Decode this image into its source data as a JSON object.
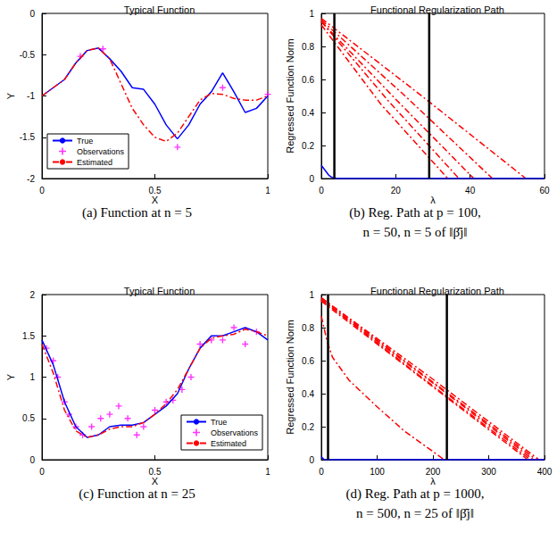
{
  "chart_data": [
    {
      "type": "line",
      "title": "Typical Function",
      "x_label": "X",
      "y_label": "Y",
      "caption": [
        "(a) Function at n = 5"
      ],
      "xlim": [
        0,
        1
      ],
      "xticks": [
        0,
        0.5,
        1
      ],
      "ylim": [
        -2,
        0
      ],
      "yticks": [
        -2,
        -1.5,
        -1,
        -0.5,
        0
      ],
      "grid": false,
      "legend": "lower left",
      "series": [
        {
          "name": "True",
          "type": "line",
          "color": "#0000ff",
          "line_style": "solid",
          "x": [
            0,
            0.05,
            0.1,
            0.15,
            0.2,
            0.25,
            0.3,
            0.35,
            0.4,
            0.45,
            0.5,
            0.55,
            0.6,
            0.65,
            0.7,
            0.75,
            0.8,
            0.85,
            0.9,
            0.95,
            1
          ],
          "values": [
            -1.0,
            -0.9,
            -0.8,
            -0.6,
            -0.45,
            -0.42,
            -0.55,
            -0.7,
            -0.9,
            -0.92,
            -1.1,
            -1.35,
            -1.52,
            -1.35,
            -1.1,
            -0.95,
            -0.72,
            -0.95,
            -1.2,
            -1.15,
            -1.0
          ]
        },
        {
          "name": "Observations",
          "type": "scatter",
          "color": "#ff00ff",
          "marker": "plus",
          "x": [
            0.17,
            0.27,
            0.6,
            0.8,
            1.0
          ],
          "values": [
            -0.52,
            -0.43,
            -1.62,
            -0.9,
            -0.98
          ]
        },
        {
          "name": "Estimated",
          "type": "line",
          "color": "#ff0000",
          "line_style": "dashdot",
          "x": [
            0,
            0.05,
            0.1,
            0.15,
            0.2,
            0.25,
            0.3,
            0.35,
            0.4,
            0.45,
            0.5,
            0.55,
            0.6,
            0.65,
            0.7,
            0.75,
            0.8,
            0.85,
            0.9,
            0.95,
            1
          ],
          "values": [
            -1.0,
            -0.9,
            -0.8,
            -0.6,
            -0.45,
            -0.42,
            -0.55,
            -0.85,
            -1.15,
            -1.35,
            -1.5,
            -1.55,
            -1.45,
            -1.25,
            -1.05,
            -0.97,
            -0.98,
            -1.03,
            -1.05,
            -1.05,
            -1.0
          ]
        }
      ]
    },
    {
      "type": "line",
      "title": "Functional Regularization Path",
      "x_label": "λ",
      "y_label": "Regressed Function Norm",
      "caption": [
        "(b) Reg. Path at p = 100,",
        "n = 50, n = 5 of ‖β̂j‖"
      ],
      "xlim": [
        0,
        60
      ],
      "xticks": [
        0,
        20,
        40,
        60
      ],
      "ylim": [
        0,
        1
      ],
      "yticks": [
        0,
        0.2,
        0.4,
        0.6,
        0.8,
        1
      ],
      "grid": false,
      "series": [
        {
          "type": "line",
          "color": "#ff0000",
          "line_style": "dashdot",
          "x": [
            0,
            27,
            55
          ],
          "values": [
            0.97,
            0.5,
            0
          ]
        },
        {
          "type": "line",
          "color": "#ff0000",
          "line_style": "dashdot",
          "x": [
            0,
            23,
            46
          ],
          "values": [
            0.96,
            0.49,
            0
          ]
        },
        {
          "type": "line",
          "color": "#ff0000",
          "line_style": "dashdot",
          "x": [
            0,
            20,
            41
          ],
          "values": [
            0.95,
            0.48,
            0
          ]
        },
        {
          "type": "line",
          "color": "#ff0000",
          "line_style": "dashdot",
          "x": [
            0,
            18,
            37
          ],
          "values": [
            0.95,
            0.47,
            0
          ]
        },
        {
          "type": "line",
          "color": "#ff0000",
          "line_style": "dashdot",
          "x": [
            0,
            16,
            34
          ],
          "values": [
            0.93,
            0.45,
            0
          ]
        },
        {
          "type": "line",
          "color": "#0000ff",
          "line_style": "solid",
          "x": [
            0,
            1,
            2,
            3,
            4,
            60
          ],
          "values": [
            0.08,
            0.05,
            0.02,
            0.005,
            0,
            0
          ]
        },
        {
          "type": "line",
          "color": "#000000",
          "line_style": "solid",
          "x": [
            3.5,
            3.5
          ],
          "values": [
            0,
            1
          ]
        },
        {
          "type": "line",
          "color": "#000000",
          "line_style": "solid",
          "x": [
            29,
            29
          ],
          "values": [
            0,
            1
          ]
        }
      ]
    },
    {
      "type": "line",
      "title": "Typical Function",
      "x_label": "X",
      "y_label": "Y",
      "caption": [
        "(c) Function at n = 25"
      ],
      "xlim": [
        0,
        1
      ],
      "xticks": [
        0,
        0.5,
        1
      ],
      "ylim": [
        0,
        2
      ],
      "yticks": [
        0,
        0.5,
        1,
        1.5,
        2
      ],
      "grid": false,
      "legend": "lower right",
      "series": [
        {
          "name": "True",
          "type": "line",
          "color": "#0000ff",
          "line_style": "solid",
          "x": [
            0,
            0.05,
            0.1,
            0.15,
            0.2,
            0.25,
            0.3,
            0.35,
            0.4,
            0.45,
            0.5,
            0.55,
            0.6,
            0.65,
            0.7,
            0.75,
            0.8,
            0.85,
            0.9,
            0.95,
            1
          ],
          "values": [
            1.45,
            1.15,
            0.7,
            0.4,
            0.27,
            0.3,
            0.4,
            0.42,
            0.42,
            0.45,
            0.55,
            0.65,
            0.8,
            1.1,
            1.35,
            1.5,
            1.5,
            1.55,
            1.6,
            1.55,
            1.45
          ]
        },
        {
          "name": "Observations",
          "type": "scatter",
          "color": "#ff00ff",
          "marker": "plus",
          "x": [
            0.02,
            0.05,
            0.07,
            0.1,
            0.12,
            0.15,
            0.18,
            0.22,
            0.26,
            0.3,
            0.34,
            0.38,
            0.42,
            0.45,
            0.5,
            0.55,
            0.58,
            0.62,
            0.66,
            0.7,
            0.75,
            0.8,
            0.85,
            0.9,
            0.95
          ],
          "values": [
            1.35,
            1.2,
            1.0,
            0.7,
            0.55,
            0.4,
            0.3,
            0.4,
            0.5,
            0.55,
            0.65,
            0.5,
            0.3,
            0.4,
            0.6,
            0.7,
            0.72,
            0.85,
            1.0,
            1.4,
            1.45,
            1.45,
            1.6,
            1.4,
            1.55
          ]
        },
        {
          "name": "Estimated",
          "type": "line",
          "color": "#ff0000",
          "line_style": "dashdot",
          "x": [
            0,
            0.05,
            0.1,
            0.15,
            0.2,
            0.25,
            0.3,
            0.35,
            0.4,
            0.45,
            0.5,
            0.55,
            0.6,
            0.65,
            0.7,
            0.75,
            0.8,
            0.85,
            0.9,
            0.95,
            1
          ],
          "values": [
            1.4,
            1.05,
            0.6,
            0.35,
            0.27,
            0.3,
            0.37,
            0.4,
            0.4,
            0.45,
            0.55,
            0.68,
            0.85,
            1.1,
            1.35,
            1.47,
            1.5,
            1.52,
            1.58,
            1.55,
            1.5
          ]
        }
      ]
    },
    {
      "type": "line",
      "title": "Functional Regularization Path",
      "x_label": "λ",
      "y_label": "Regressed Function Norm",
      "caption": [
        "(d) Reg. Path at p = 1000,",
        "n = 500, n = 25 of ‖β̂j‖"
      ],
      "xlim": [
        0,
        400
      ],
      "xticks": [
        0,
        100,
        200,
        300,
        400
      ],
      "ylim": [
        0,
        1
      ],
      "yticks": [
        0,
        0.2,
        0.4,
        0.6,
        0.8,
        1
      ],
      "grid": false,
      "series": [
        {
          "type": "line",
          "color": "#ff0000",
          "line_style": "dashdot",
          "x": [
            0,
            195,
            390
          ],
          "values": [
            0.98,
            0.5,
            0
          ]
        },
        {
          "type": "line",
          "color": "#ff0000",
          "line_style": "dashdot",
          "x": [
            0,
            192,
            385
          ],
          "values": [
            0.98,
            0.49,
            0
          ]
        },
        {
          "type": "line",
          "color": "#ff0000",
          "line_style": "dashdot",
          "x": [
            0,
            190,
            380
          ],
          "values": [
            0.97,
            0.49,
            0
          ]
        },
        {
          "type": "line",
          "color": "#ff0000",
          "line_style": "dashdot",
          "x": [
            0,
            187,
            375
          ],
          "values": [
            0.97,
            0.48,
            0
          ]
        },
        {
          "type": "line",
          "color": "#ff0000",
          "line_style": "dashdot",
          "x": [
            0,
            185,
            370
          ],
          "values": [
            0.96,
            0.48,
            0
          ]
        },
        {
          "type": "line",
          "color": "#ff0000",
          "line_style": "dashdot",
          "x": [
            0,
            10,
            20,
            50,
            100,
            150,
            200,
            220
          ],
          "values": [
            0.87,
            0.72,
            0.62,
            0.48,
            0.32,
            0.17,
            0.05,
            0
          ]
        },
        {
          "type": "line",
          "color": "#0000ff",
          "line_style": "solid",
          "x": [
            0,
            2,
            5,
            400
          ],
          "values": [
            0.02,
            0.01,
            0,
            0
          ]
        },
        {
          "type": "line",
          "color": "#000000",
          "line_style": "solid",
          "x": [
            12,
            12
          ],
          "values": [
            0,
            1
          ]
        },
        {
          "type": "line",
          "color": "#000000",
          "line_style": "solid",
          "x": [
            225,
            225
          ],
          "values": [
            0,
            1
          ]
        }
      ]
    }
  ]
}
